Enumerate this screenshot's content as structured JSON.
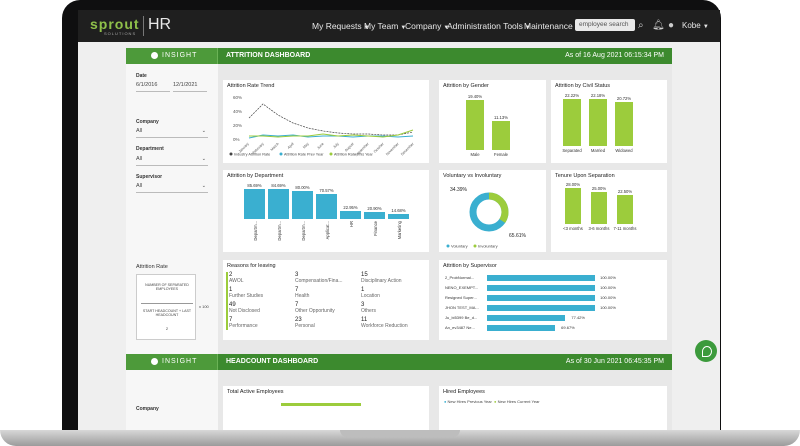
{
  "topnav": {
    "logo": "sprout",
    "logo_sub": "SOLUTIONS",
    "app": "HR",
    "items": [
      "My Requests",
      "My Team",
      "Company",
      "Administration Tools",
      "Maintenance"
    ],
    "search_placeholder": "employee search",
    "user": "Kobe"
  },
  "attrition": {
    "insight": "INSIGHT",
    "title": "ATTRITION DASHBOARD",
    "asof": "As of 16 Aug 2021 06:15:34 PM",
    "filters": {
      "date_label": "Date",
      "date_from": "6/1/2016",
      "date_to": "12/1/2021",
      "company_label": "Company",
      "company_value": "All",
      "department_label": "Department",
      "department_value": "All",
      "supervisor_label": "Supervisor",
      "supervisor_value": "All"
    },
    "rate_box": {
      "label": "Attrition Rate",
      "numerator": "NUMBER OF SEPARATED EMPLOYEES",
      "denominator": "START HEADCOUNT + LAST HEADCOUNT",
      "divisor": "2",
      "times": "x 100"
    },
    "trend": {
      "title": "Attrition Rate Trend",
      "yticks": [
        "60%",
        "40%",
        "20%",
        "0%"
      ],
      "months": [
        "January",
        "February",
        "March",
        "April",
        "May",
        "June",
        "July",
        "August",
        "September",
        "October",
        "November",
        "December"
      ],
      "legend": [
        "Industry Attrition Rate",
        "Attrition Rate Prev Year",
        "Attrition Rate This Year"
      ]
    },
    "gender": {
      "title": "Attrition by Gender",
      "bars": [
        {
          "label": "Male",
          "value": "19.40%",
          "v": 19.4
        },
        {
          "label": "Female",
          "value": "11.13%",
          "v": 11.13
        }
      ]
    },
    "civil": {
      "title": "Attrition by Civil Status",
      "bars": [
        {
          "label": "Separated",
          "value": "22.22%",
          "v": 22.22
        },
        {
          "label": "Married",
          "value": "22.18%",
          "v": 22.18
        },
        {
          "label": "Widowed",
          "value": "20.72%",
          "v": 20.72
        }
      ]
    },
    "department": {
      "title": "Attrition by Department",
      "bars": [
        {
          "label": "Departm...",
          "value": "85.69%",
          "v": 85.69
        },
        {
          "label": "Departm...",
          "value": "84.69%",
          "v": 84.69
        },
        {
          "label": "Departm...",
          "value": "80.00%",
          "v": 80.0
        },
        {
          "label": "Applicat...",
          "value": "70.57%",
          "v": 70.57
        },
        {
          "label": "HR",
          "value": "22.95%",
          "v": 22.95
        },
        {
          "label": "Finance",
          "value": "20.90%",
          "v": 20.9
        },
        {
          "label": "Marketing",
          "value": "14.68%",
          "v": 14.68
        }
      ]
    },
    "voluntary": {
      "title": "Voluntary vs Involuntary",
      "vol_value": "34.39%",
      "invol_value": "65.61%",
      "vol_pct": 34.39,
      "legend": [
        "Voluntary",
        "Involuntary"
      ]
    },
    "tenure": {
      "title": "Tenure Upon Separation",
      "bars": [
        {
          "label": "<3 months",
          "value": "28.00%",
          "v": 28.0
        },
        {
          "label": "3-6 months",
          "value": "25.00%",
          "v": 25.0
        },
        {
          "label": "7-11 months",
          "value": "22.50%",
          "v": 22.5
        }
      ]
    },
    "reasons": {
      "title": "Reasons for leaving",
      "items": [
        {
          "num": "2",
          "label": "AWOL"
        },
        {
          "num": "3",
          "label": "Compensation/Fina..."
        },
        {
          "num": "15",
          "label": "Disciplinary Action"
        },
        {
          "num": "1",
          "label": "Further Studies"
        },
        {
          "num": "7",
          "label": "Health"
        },
        {
          "num": "1",
          "label": "Location"
        },
        {
          "num": "49",
          "label": "Not Disclosed"
        },
        {
          "num": "7",
          "label": "Other Opportunity"
        },
        {
          "num": "3",
          "label": "Others"
        },
        {
          "num": "7",
          "label": "Performance"
        },
        {
          "num": "23",
          "label": "Personal"
        },
        {
          "num": "11",
          "label": "Workforce Reduction"
        }
      ]
    },
    "supervisor": {
      "title": "Attrition by Supervisor",
      "rows": [
        {
          "name": "2_ProbNormal...",
          "value": "100.00%",
          "v": 100
        },
        {
          "name": "NENO_EXEMPT...",
          "value": "100.00%",
          "v": 100
        },
        {
          "name": "Resigned Super...",
          "value": "100.00%",
          "v": 100
        },
        {
          "name": "JHON TEST_MA...",
          "value": "100.00%",
          "v": 100
        },
        {
          "name": "Ju_bi5399 Be_d...",
          "value": "77.42%",
          "v": 77.42
        },
        {
          "name": "An_ev3487 Ne...",
          "value": "69.67%",
          "v": 69.67
        }
      ]
    }
  },
  "headcount": {
    "insight": "INSIGHT",
    "title": "HEADCOUNT DASHBOARD",
    "asof": "As of 30 Jun 2021 06:45:35 PM",
    "company_label": "Company",
    "total_title": "Total Active Employees",
    "hired_title": "Hired Employees",
    "hired_legend": [
      "New Hires Previous Year",
      "New Hires Current Year"
    ]
  },
  "colors": {
    "green": "#3c8a2e",
    "lime": "#9ccc3c",
    "teal": "#3aafd0",
    "dark": "#1f1f1f"
  }
}
